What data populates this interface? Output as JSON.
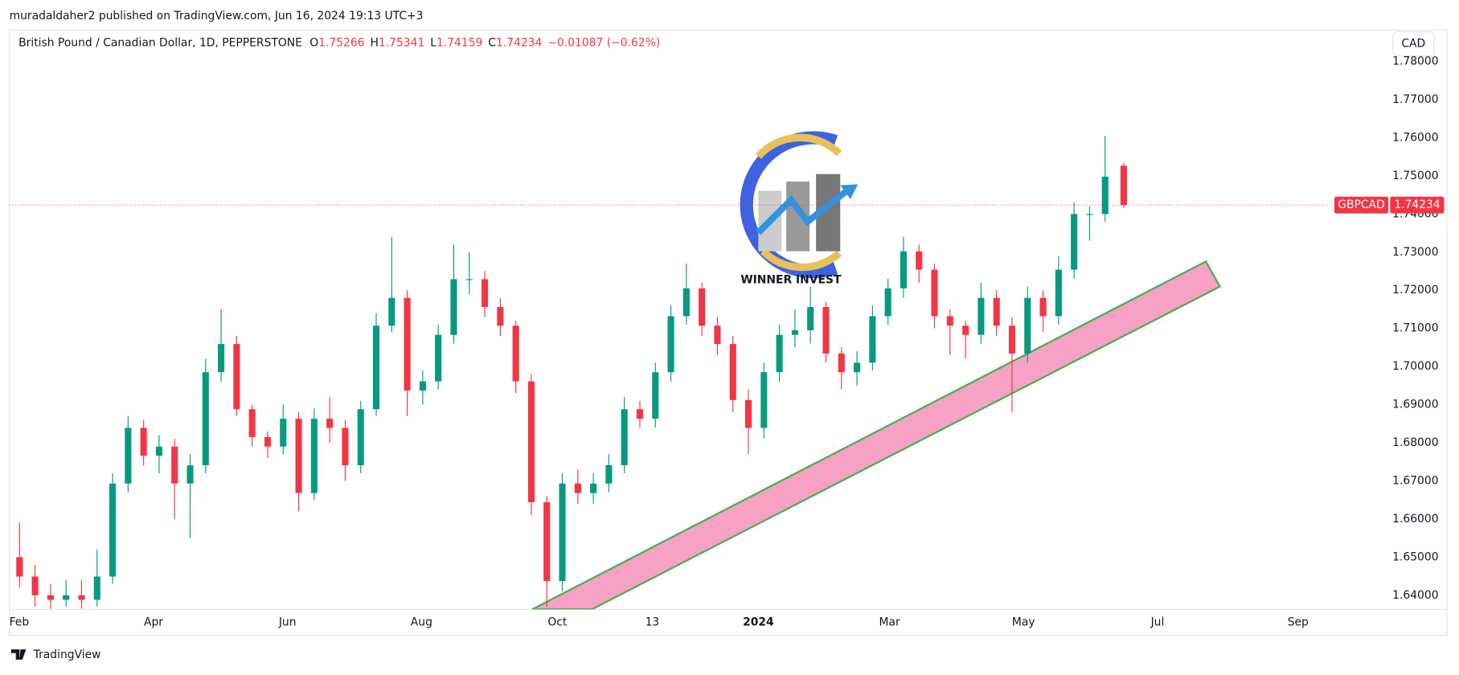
{
  "header": {
    "published": "muradaldaher2 published on TradingView.com, Jun 16, 2024 19:13 UTC+3",
    "currency_button": "CAD",
    "footer": "TradingView",
    "logo_text": "WINNER INVEST"
  },
  "chart_data": {
    "type": "candlestick",
    "symbol": "British Pound / Canadian Dollar, 1D, PEPPERSTONE",
    "ticker": "GBPCAD",
    "legend": {
      "open_label": "O",
      "open": 1.75266,
      "high_label": "H",
      "high": 1.75341,
      "low_label": "L",
      "low": 1.74159,
      "close_label": "C",
      "close": 1.74234,
      "change": "−0.01087 (−0.62%)"
    },
    "up_color": "#089981",
    "down_color": "#f23645",
    "grid": false,
    "x": [
      0,
      5,
      10,
      15,
      20,
      25,
      30,
      35,
      40,
      45,
      50,
      55,
      60,
      65,
      70,
      75,
      80,
      85,
      90,
      95,
      100,
      105,
      110,
      115,
      120,
      125,
      130,
      135,
      140,
      145,
      150,
      155,
      160,
      165,
      170,
      175,
      180,
      185,
      190,
      195,
      200,
      205,
      210,
      215,
      220,
      225,
      230,
      235,
      240,
      245,
      250,
      255,
      260,
      265,
      270,
      275,
      280,
      285,
      290,
      295,
      300,
      305,
      310,
      315,
      320,
      325,
      330,
      335,
      340,
      345,
      350,
      356
    ],
    "ohlc": [
      [
        1.65,
        1.659,
        1.642,
        1.6449
      ],
      [
        1.6449,
        1.648,
        1.637,
        1.64
      ],
      [
        1.64,
        1.643,
        1.6365,
        1.6388
      ],
      [
        1.6388,
        1.644,
        1.637,
        1.64
      ],
      [
        1.64,
        1.644,
        1.6365,
        1.6388
      ],
      [
        1.6388,
        1.652,
        1.637,
        1.6449
      ],
      [
        1.6449,
        1.672,
        1.643,
        1.6693
      ],
      [
        1.6693,
        1.687,
        1.667,
        1.6839
      ],
      [
        1.6839,
        1.686,
        1.674,
        1.6766
      ],
      [
        1.6766,
        1.682,
        1.672,
        1.679
      ],
      [
        1.679,
        1.681,
        1.66,
        1.6693
      ],
      [
        1.6693,
        1.677,
        1.655,
        1.6741
      ],
      [
        1.6741,
        1.702,
        1.672,
        1.6985
      ],
      [
        1.6985,
        1.715,
        1.696,
        1.7059
      ],
      [
        1.7059,
        1.708,
        1.687,
        1.6888
      ],
      [
        1.6888,
        1.69,
        1.679,
        1.6815
      ],
      [
        1.6815,
        1.683,
        1.676,
        1.679
      ],
      [
        1.679,
        1.69,
        1.677,
        1.6863
      ],
      [
        1.6863,
        1.688,
        1.662,
        1.6668
      ],
      [
        1.6668,
        1.689,
        1.665,
        1.6863
      ],
      [
        1.6863,
        1.692,
        1.68,
        1.6839
      ],
      [
        1.6839,
        1.686,
        1.67,
        1.6741
      ],
      [
        1.6741,
        1.691,
        1.672,
        1.6888
      ],
      [
        1.6888,
        1.714,
        1.687,
        1.7107
      ],
      [
        1.7107,
        1.734,
        1.709,
        1.718
      ],
      [
        1.718,
        1.72,
        1.687,
        1.6937
      ],
      [
        1.6937,
        1.699,
        1.69,
        1.6961
      ],
      [
        1.6961,
        1.711,
        1.694,
        1.7083
      ],
      [
        1.7083,
        1.732,
        1.706,
        1.7229
      ],
      [
        1.7229,
        1.73,
        1.719,
        1.7229
      ],
      [
        1.7229,
        1.725,
        1.713,
        1.7156
      ],
      [
        1.7156,
        1.718,
        1.708,
        1.7107
      ],
      [
        1.7107,
        1.712,
        1.693,
        1.6961
      ],
      [
        1.6961,
        1.698,
        1.661,
        1.6644
      ],
      [
        1.6644,
        1.666,
        1.637,
        1.6437
      ],
      [
        1.6437,
        1.672,
        1.641,
        1.6693
      ],
      [
        1.6693,
        1.673,
        1.664,
        1.6668
      ],
      [
        1.6668,
        1.672,
        1.664,
        1.6693
      ],
      [
        1.6693,
        1.677,
        1.667,
        1.6741
      ],
      [
        1.6741,
        1.692,
        1.672,
        1.6888
      ],
      [
        1.6888,
        1.691,
        1.684,
        1.6863
      ],
      [
        1.6863,
        1.701,
        1.684,
        1.6985
      ],
      [
        1.6985,
        1.716,
        1.696,
        1.7132
      ],
      [
        1.7132,
        1.727,
        1.711,
        1.7205
      ],
      [
        1.7205,
        1.722,
        1.708,
        1.7107
      ],
      [
        1.7107,
        1.713,
        1.703,
        1.7059
      ],
      [
        1.7059,
        1.708,
        1.688,
        1.6912
      ],
      [
        1.6912,
        1.694,
        1.677,
        1.6839
      ],
      [
        1.6839,
        1.701,
        1.681,
        1.6985
      ],
      [
        1.6985,
        1.711,
        1.696,
        1.7083
      ],
      [
        1.7083,
        1.715,
        1.705,
        1.7095
      ],
      [
        1.7095,
        1.721,
        1.706,
        1.7156
      ],
      [
        1.7156,
        1.717,
        1.701,
        1.7034
      ],
      [
        1.7034,
        1.705,
        1.694,
        1.6985
      ],
      [
        1.6985,
        1.704,
        1.695,
        1.701
      ],
      [
        1.701,
        1.716,
        1.699,
        1.7132
      ],
      [
        1.7132,
        1.723,
        1.711,
        1.7205
      ],
      [
        1.7205,
        1.734,
        1.718,
        1.7302
      ],
      [
        1.7302,
        1.732,
        1.722,
        1.7254
      ],
      [
        1.7254,
        1.727,
        1.71,
        1.7132
      ],
      [
        1.7132,
        1.715,
        1.703,
        1.7107
      ],
      [
        1.7107,
        1.712,
        1.702,
        1.7083
      ],
      [
        1.7083,
        1.722,
        1.706,
        1.718
      ],
      [
        1.718,
        1.72,
        1.708,
        1.7107
      ],
      [
        1.7107,
        1.713,
        1.688,
        1.7034
      ],
      [
        1.7034,
        1.721,
        1.701,
        1.718
      ],
      [
        1.718,
        1.72,
        1.709,
        1.7132
      ],
      [
        1.7132,
        1.729,
        1.711,
        1.7254
      ],
      [
        1.7254,
        1.743,
        1.723,
        1.74
      ],
      [
        1.74,
        1.742,
        1.733,
        1.74
      ],
      [
        1.74,
        1.7605,
        1.738,
        1.7498
      ],
      [
        1.75266,
        1.75341,
        1.74159,
        1.74234
      ]
    ],
    "xlim": [
      -3.3,
      422.1
    ],
    "xticks": [
      {
        "value": 0,
        "label": "Feb"
      },
      {
        "value": 43.2,
        "label": "Apr"
      },
      {
        "value": 86.4,
        "label": "Jun"
      },
      {
        "value": 129.6,
        "label": "Aug"
      },
      {
        "value": 173.4,
        "label": "Oct"
      },
      {
        "value": 204,
        "label": "13"
      },
      {
        "value": 238.2,
        "label": "2024"
      },
      {
        "value": 280.5,
        "label": "Mar"
      },
      {
        "value": 323.7,
        "label": "May"
      },
      {
        "value": 366.9,
        "label": "Jul"
      },
      {
        "value": 412.2,
        "label": "Sep"
      }
    ],
    "ylim": [
      1.6363,
      1.7883
    ],
    "yticks": [
      {
        "value": 1.64,
        "label": "1.64000"
      },
      {
        "value": 1.65,
        "label": "1.65000"
      },
      {
        "value": 1.66,
        "label": "1.66000"
      },
      {
        "value": 1.67,
        "label": "1.67000"
      },
      {
        "value": 1.68,
        "label": "1.68000"
      },
      {
        "value": 1.69,
        "label": "1.69000"
      },
      {
        "value": 1.7,
        "label": "1.70000"
      },
      {
        "value": 1.71,
        "label": "1.71000"
      },
      {
        "value": 1.72,
        "label": "1.72000"
      },
      {
        "value": 1.73,
        "label": "1.73000"
      },
      {
        "value": 1.74,
        "label": "1.74000"
      },
      {
        "value": 1.75,
        "label": "1.75000"
      },
      {
        "value": 1.76,
        "label": "1.76000"
      },
      {
        "value": 1.77,
        "label": "1.77000"
      },
      {
        "value": 1.78,
        "label": "1.78000"
      }
    ]
  }
}
